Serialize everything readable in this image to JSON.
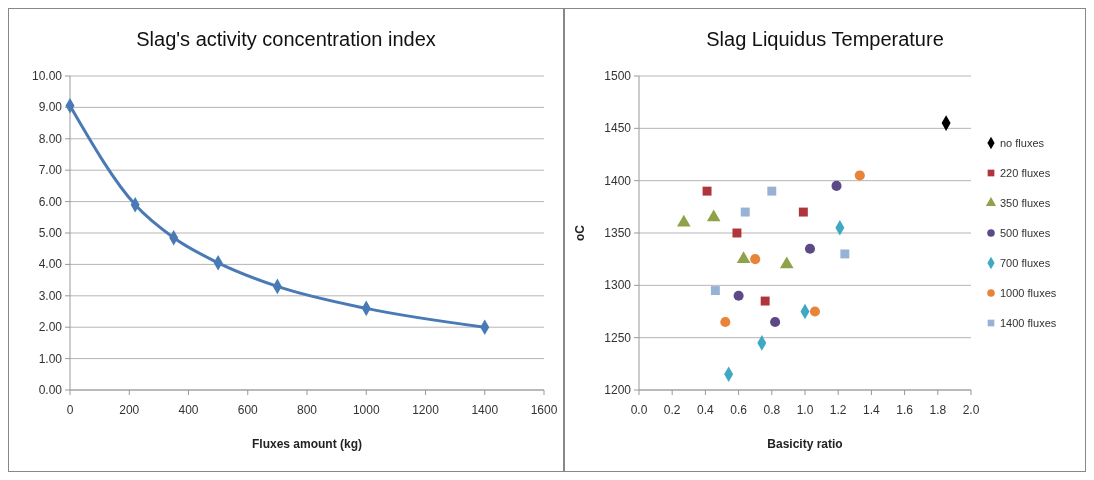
{
  "chart_data": [
    {
      "type": "line",
      "title": "Slag's activity concentration index",
      "xlabel": "Fluxes amount (kg)",
      "x": [
        0,
        220,
        350,
        500,
        700,
        1000,
        1400
      ],
      "xlim": [
        0,
        1600
      ],
      "xticks": [
        0,
        200,
        400,
        600,
        800,
        1000,
        1200,
        1400,
        1600
      ],
      "ylim": [
        0,
        10
      ],
      "yticks": [
        {
          "value": 0,
          "label": "0.00"
        },
        {
          "value": 1,
          "label": "1.00"
        },
        {
          "value": 2,
          "label": "2.00"
        },
        {
          "value": 3,
          "label": "3.00"
        },
        {
          "value": 4,
          "label": "4.00"
        },
        {
          "value": 5,
          "label": "5.00"
        },
        {
          "value": 6,
          "label": "6.00"
        },
        {
          "value": 7,
          "label": "7.00"
        },
        {
          "value": 8,
          "label": "8.00"
        },
        {
          "value": 9,
          "label": "9.00"
        },
        {
          "value": 10,
          "label": "10.00"
        }
      ],
      "grid": "y",
      "legend": false,
      "marker": "diamond",
      "line_style": "solid",
      "series": [
        {
          "color": "#4a7ab5",
          "values": [
            9.05,
            5.9,
            4.85,
            4.05,
            3.3,
            2.6,
            2.0
          ]
        }
      ]
    },
    {
      "type": "scatter",
      "title": "Slag Liquidus Temperature",
      "xlabel": "Basicity ratio",
      "ylabel": "oC",
      "xlim": [
        0,
        2
      ],
      "xticks": [
        {
          "value": 0,
          "label": "0.0"
        },
        {
          "value": 0.2,
          "label": "0.2"
        },
        {
          "value": 0.4,
          "label": "0.4"
        },
        {
          "value": 0.6,
          "label": "0.6"
        },
        {
          "value": 0.8,
          "label": "0.8"
        },
        {
          "value": 1,
          "label": "1.0"
        },
        {
          "value": 1.2,
          "label": "1.2"
        },
        {
          "value": 1.4,
          "label": "1.4"
        },
        {
          "value": 1.6,
          "label": "1.6"
        },
        {
          "value": 1.8,
          "label": "1.8"
        },
        {
          "value": 2,
          "label": "2.0"
        }
      ],
      "ylim": [
        1200,
        1500
      ],
      "yticks": [
        1200,
        1250,
        1300,
        1350,
        1400,
        1450,
        1500
      ],
      "grid": "y",
      "legend": "right",
      "series": [
        {
          "name": "no fluxes",
          "color": "#000000",
          "marker": "diamond",
          "x": [
            1.85
          ],
          "values": [
            1455
          ]
        },
        {
          "name": "220 fluxes",
          "color": "#b0353b",
          "marker": "square",
          "x": [
            0.41,
            0.59,
            0.76,
            0.99
          ],
          "values": [
            1390,
            1350,
            1285,
            1370
          ]
        },
        {
          "name": "350 fluxes",
          "color": "#8ea24a",
          "marker": "triangle",
          "x": [
            0.27,
            0.45,
            0.63,
            0.89
          ],
          "values": [
            1360,
            1365,
            1325,
            1320
          ]
        },
        {
          "name": "500 fluxes",
          "color": "#5b4a86",
          "marker": "circle",
          "x": [
            0.6,
            0.82,
            1.03,
            1.19
          ],
          "values": [
            1290,
            1265,
            1335,
            1395
          ]
        },
        {
          "name": "700 fluxes",
          "color": "#3fa9c4",
          "marker": "diamond",
          "x": [
            0.54,
            0.74,
            1.0,
            1.21
          ],
          "values": [
            1215,
            1245,
            1275,
            1355
          ]
        },
        {
          "name": "1000 fluxes",
          "color": "#e8843a",
          "marker": "circle",
          "x": [
            0.52,
            0.7,
            1.06,
            1.33
          ],
          "values": [
            1265,
            1325,
            1275,
            1405
          ]
        },
        {
          "name": "1400 fluxes",
          "color": "#98b2d6",
          "marker": "square",
          "x": [
            0.46,
            0.64,
            0.8,
            1.24
          ],
          "values": [
            1295,
            1370,
            1390,
            1330
          ]
        }
      ]
    }
  ]
}
